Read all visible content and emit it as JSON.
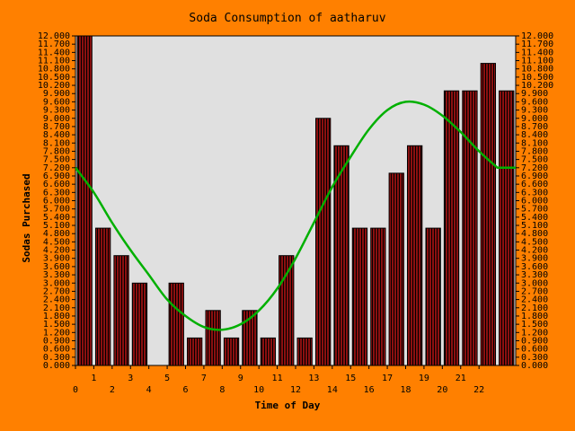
{
  "chart_data": {
    "type": "bar",
    "title": "Soda Consumption of aatharuv",
    "xlabel": "Time of Day",
    "ylabel": "Sodas Purchased",
    "x": [
      0,
      1,
      2,
      3,
      4,
      5,
      6,
      7,
      8,
      9,
      10,
      11,
      12,
      13,
      14,
      15,
      16,
      17,
      18,
      19,
      20,
      21,
      22,
      23
    ],
    "values": [
      12,
      5,
      4,
      3,
      0,
      3,
      1,
      2,
      1,
      2,
      1,
      4,
      1,
      9,
      8,
      5,
      5,
      7,
      8,
      5,
      10,
      10,
      11,
      10
    ],
    "trend": [
      7.2,
      6.3,
      5.2,
      4.2,
      3.3,
      2.4,
      1.8,
      1.4,
      1.3,
      1.5,
      2.0,
      2.8,
      3.9,
      5.2,
      6.5,
      7.6,
      8.6,
      9.3,
      9.6,
      9.5,
      9.1,
      8.5,
      7.8,
      7.2
    ],
    "xlim": [
      0,
      24
    ],
    "ylim": [
      0,
      12
    ],
    "y_tick_step": 0.3,
    "y_tick_decimals": 3,
    "x_tick_labels": [
      "0",
      "1",
      "2",
      "3",
      "4",
      "5",
      "6",
      "7",
      "8",
      "9",
      "10",
      "11",
      "12",
      "13",
      "14",
      "15",
      "16",
      "17",
      "18",
      "19",
      "20",
      "21",
      "22"
    ],
    "grid": false,
    "colors": {
      "background": "#ff8000",
      "plot_area": "#e0e0e0",
      "bar_fill": "#8b1010",
      "bar_stripe": "#000000",
      "trend_line": "#00b000"
    }
  }
}
